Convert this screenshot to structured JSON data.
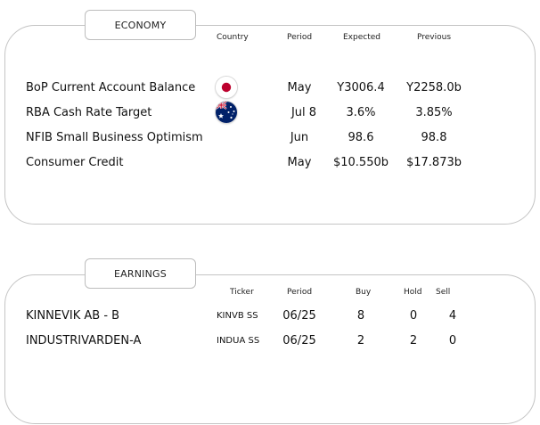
{
  "economy": {
    "title": "ECONOMY",
    "headers": {
      "country": "Country",
      "period": "Period",
      "expected": "Expected",
      "previous": "Previous"
    },
    "rows": [
      {
        "event": "BoP Current Account Balance",
        "country_icon": "japan-flag-icon",
        "period": "May",
        "expected": "Y3006.4",
        "previous": "Y2258.0b"
      },
      {
        "event": "RBA Cash Rate Target",
        "country_icon": "australia-flag-icon",
        "period": "Jul 8",
        "expected": "3.6%",
        "previous": "3.85%"
      },
      {
        "event": "NFIB Small Business Optimism",
        "country_icon": "",
        "period": "Jun",
        "expected": "98.6",
        "previous": "98.8"
      },
      {
        "event": "Consumer Credit",
        "country_icon": "",
        "period": "May",
        "expected": "$10.550b",
        "previous": "$17.873b"
      }
    ]
  },
  "earnings": {
    "title": "EARNINGS",
    "headers": {
      "ticker": "Ticker",
      "period": "Period",
      "buy": "Buy",
      "hold": "Hold",
      "sell": "Sell"
    },
    "rows": [
      {
        "company": "KINNEVIK AB - B",
        "ticker": "KINVB SS",
        "period": "06/25",
        "buy": "8",
        "hold": "0",
        "sell": "4"
      },
      {
        "company": "INDUSTRIVARDEN-A",
        "ticker": "INDUA SS",
        "period": "06/25",
        "buy": "2",
        "hold": "2",
        "sell": "0"
      }
    ]
  },
  "colors": {
    "border": "#c4c4c4",
    "japan_red": "#bc002d",
    "australia_blue": "#012169"
  }
}
